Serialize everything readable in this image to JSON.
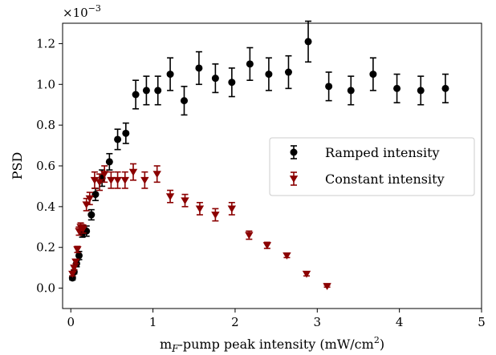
{
  "chart_data": {
    "type": "scatter",
    "title": "",
    "xlabel": "m_F-pump peak intensity (mW/cm^2)",
    "xlabel_parts": {
      "base": "m",
      "sub": "F",
      "mid": "-pump peak intensity (mW/cm",
      "sup": "2",
      "end": ")"
    },
    "ylabel": "PSD",
    "y_multiplier": {
      "base": "×10",
      "exp": "−3"
    },
    "xlim": [
      -0.1,
      5.0
    ],
    "ylim": [
      -0.1,
      1.3
    ],
    "xticks": [
      0,
      1,
      2,
      3,
      4,
      5
    ],
    "yticks": [
      0.0,
      0.2,
      0.4,
      0.6,
      0.8,
      1.0,
      1.2
    ],
    "xtick_labels": [
      "0",
      "1",
      "2",
      "3",
      "4",
      "5"
    ],
    "ytick_labels": [
      "0.0",
      "0.2",
      "0.4",
      "0.6",
      "0.8",
      "1.0",
      "1.2"
    ],
    "grid": false,
    "legend": {
      "position": "center-right"
    },
    "series": [
      {
        "name": "Ramped intensity",
        "color": "#000000",
        "marker": "circle",
        "x": [
          0.02,
          0.04,
          0.07,
          0.1,
          0.14,
          0.19,
          0.25,
          0.3,
          0.38,
          0.47,
          0.57,
          0.67,
          0.79,
          0.92,
          1.06,
          1.21,
          1.38,
          1.56,
          1.76,
          1.96,
          2.18,
          2.41,
          2.65,
          2.89,
          3.14,
          3.41,
          3.68,
          3.97,
          4.26,
          4.56
        ],
        "y": [
          0.05,
          0.08,
          0.12,
          0.16,
          0.27,
          0.28,
          0.36,
          0.46,
          0.54,
          0.62,
          0.73,
          0.76,
          0.95,
          0.97,
          0.97,
          1.05,
          0.92,
          1.08,
          1.03,
          1.01,
          1.1,
          1.05,
          1.06,
          1.21,
          0.99,
          0.97,
          1.05,
          0.98,
          0.97,
          0.98
        ],
        "err": [
          0.01,
          0.01,
          0.015,
          0.02,
          0.02,
          0.025,
          0.025,
          0.03,
          0.04,
          0.04,
          0.05,
          0.05,
          0.07,
          0.07,
          0.07,
          0.08,
          0.07,
          0.08,
          0.07,
          0.07,
          0.08,
          0.08,
          0.08,
          0.1,
          0.07,
          0.07,
          0.08,
          0.07,
          0.07,
          0.07
        ]
      },
      {
        "name": "Constant intensity",
        "color": "#8b0000",
        "marker": "triangle-down",
        "x": [
          0.02,
          0.04,
          0.06,
          0.08,
          0.1,
          0.12,
          0.15,
          0.19,
          0.23,
          0.29,
          0.35,
          0.41,
          0.49,
          0.57,
          0.66,
          0.76,
          0.9,
          1.05,
          1.21,
          1.39,
          1.57,
          1.76,
          1.96,
          2.17,
          2.39,
          2.63,
          2.87,
          3.12
        ],
        "y": [
          0.07,
          0.1,
          0.13,
          0.19,
          0.28,
          0.3,
          0.29,
          0.41,
          0.44,
          0.53,
          0.52,
          0.56,
          0.53,
          0.53,
          0.53,
          0.57,
          0.53,
          0.56,
          0.45,
          0.43,
          0.39,
          0.36,
          0.39,
          0.26,
          0.21,
          0.16,
          0.07,
          0.01
        ],
        "err": [
          0.01,
          0.01,
          0.01,
          0.015,
          0.02,
          0.02,
          0.02,
          0.03,
          0.03,
          0.04,
          0.04,
          0.04,
          0.04,
          0.04,
          0.04,
          0.04,
          0.04,
          0.04,
          0.03,
          0.03,
          0.03,
          0.03,
          0.03,
          0.02,
          0.015,
          0.01,
          0.01,
          0.005
        ]
      }
    ]
  }
}
